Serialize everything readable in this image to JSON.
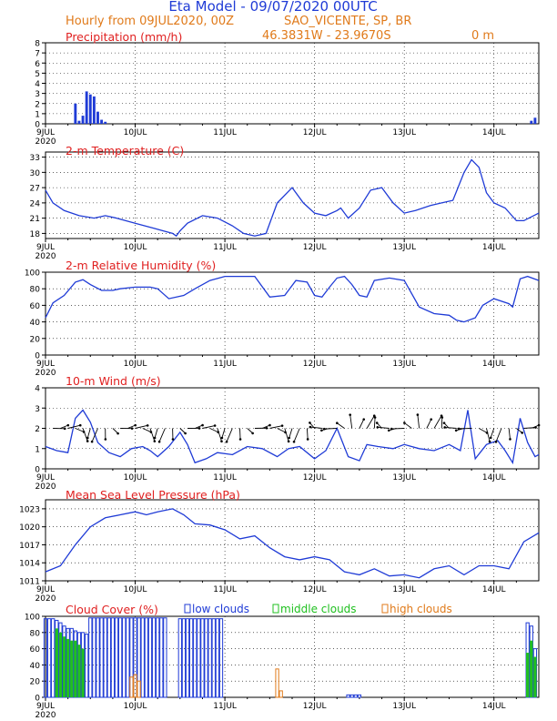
{
  "header": {
    "title": "Eta Model - 09/07/2020 00UTC",
    "subtitle": "Hourly from 09JUL2020, 00Z",
    "location": "SAO_VICENTE, SP, BR",
    "coords": "46.3831W - 23.9670S",
    "elevation": "0   m",
    "title_color": "#1f3bd6",
    "sub_color": "#e07a1a"
  },
  "x_axis": {
    "first_label": "9JUL",
    "first_year": "2020",
    "labels": [
      "9JUL",
      "10JUL",
      "11JUL",
      "12JUL",
      "13JUL",
      "14JUL"
    ],
    "positions": [
      0,
      24,
      48,
      72,
      96,
      120
    ],
    "range_hours": [
      0,
      132
    ]
  },
  "colors": {
    "series": "#1f3bd6",
    "title": "#e02020",
    "low": "#1f3bd6",
    "middle": "#20c020",
    "high": "#e07a1a"
  },
  "chart_data": [
    {
      "id": "precip",
      "type": "bar",
      "title": "Precipitation (mm/h)",
      "ylim": [
        0,
        8
      ],
      "yticks": [
        0,
        1,
        2,
        3,
        4,
        5,
        6,
        7,
        8
      ],
      "x": [
        8,
        9,
        10,
        11,
        12,
        13,
        14,
        15,
        16,
        130,
        131
      ],
      "values": [
        2.0,
        0.3,
        0.8,
        3.2,
        2.9,
        2.7,
        1.2,
        0.4,
        0.2,
        0.3,
        0.6
      ]
    },
    {
      "id": "temp",
      "type": "line",
      "title": "2-m Temperature (C)",
      "ylim": [
        17,
        34
      ],
      "yticks": [
        18,
        21,
        24,
        27,
        30,
        33
      ],
      "x": [
        0,
        2,
        5,
        9,
        13,
        16,
        19,
        24,
        29,
        34,
        35,
        36,
        38,
        42,
        46,
        50,
        53,
        56,
        59,
        62,
        66,
        69,
        72,
        75,
        78,
        79,
        81,
        84,
        87,
        90,
        93,
        96,
        99,
        103,
        106,
        109,
        112,
        114,
        116,
        118,
        120,
        123,
        126,
        128,
        132
      ],
      "values": [
        26.5,
        24,
        22.5,
        21.5,
        21,
        21.5,
        21,
        20,
        19,
        18,
        17.5,
        18.5,
        20,
        21.5,
        21,
        19.5,
        18,
        17.5,
        18,
        24,
        27,
        24,
        22,
        21.5,
        22.5,
        23,
        21,
        23,
        26.5,
        27,
        24,
        22,
        22.5,
        23.5,
        24,
        24.5,
        30,
        32.5,
        31,
        26,
        24,
        23,
        20.5,
        20.5,
        22
      ]
    },
    {
      "id": "rh",
      "type": "line",
      "title": "2-m Relative Humidity (%)",
      "ylim": [
        0,
        100
      ],
      "yticks": [
        0,
        20,
        40,
        60,
        80,
        100
      ],
      "x": [
        0,
        2,
        5,
        8,
        10,
        12,
        15,
        18,
        20,
        24,
        28,
        30,
        33,
        37,
        40,
        44,
        48,
        52,
        56,
        60,
        64,
        67,
        70,
        72,
        74,
        76,
        78,
        80,
        82,
        84,
        86,
        88,
        92,
        96,
        100,
        104,
        108,
        110,
        112,
        115,
        117,
        120,
        124,
        125,
        127,
        129,
        132
      ],
      "values": [
        45,
        63,
        72,
        88,
        91,
        85,
        78,
        78,
        80,
        82,
        82,
        80,
        68,
        72,
        80,
        90,
        95,
        95,
        95,
        70,
        72,
        90,
        88,
        72,
        70,
        82,
        93,
        95,
        85,
        72,
        70,
        90,
        93,
        90,
        58,
        50,
        48,
        42,
        40,
        45,
        60,
        68,
        62,
        58,
        92,
        95,
        90
      ]
    },
    {
      "id": "wind",
      "type": "line",
      "title": "10-m Wind (m/s)",
      "ylim": [
        0,
        4
      ],
      "yticks": [
        0,
        1,
        2,
        3,
        4
      ],
      "x": [
        0,
        3,
        6,
        8,
        10,
        12,
        14,
        17,
        20,
        23,
        26,
        28,
        30,
        33,
        36,
        38,
        40,
        43,
        46,
        50,
        54,
        58,
        62,
        65,
        68,
        72,
        75,
        78,
        81,
        84,
        86,
        89,
        93,
        96,
        100,
        104,
        108,
        111,
        113,
        115,
        118,
        121,
        123,
        125,
        127,
        129,
        131,
        132
      ],
      "values": [
        1.1,
        0.9,
        0.8,
        2.5,
        2.9,
        2.3,
        1.3,
        0.8,
        0.6,
        1.0,
        1.1,
        0.9,
        0.6,
        1.1,
        1.8,
        1.2,
        0.3,
        0.5,
        0.8,
        0.7,
        1.1,
        1.0,
        0.6,
        1.0,
        1.1,
        0.5,
        0.9,
        2.0,
        0.6,
        0.4,
        1.2,
        1.1,
        1.0,
        1.2,
        1.0,
        0.9,
        1.2,
        0.9,
        2.9,
        0.5,
        1.2,
        1.4,
        0.9,
        0.3,
        2.5,
        1.3,
        0.6,
        0.7
      ]
    },
    {
      "id": "mslp",
      "type": "line",
      "title": "Mean Sea Level Pressure (hPa)",
      "ylim": [
        1011,
        1024.5
      ],
      "yticks": [
        1011,
        1014,
        1017,
        1020,
        1023
      ],
      "x": [
        0,
        4,
        8,
        12,
        16,
        20,
        24,
        27,
        30,
        34,
        37,
        40,
        44,
        48,
        52,
        56,
        60,
        64,
        68,
        72,
        76,
        80,
        84,
        88,
        92,
        96,
        100,
        104,
        108,
        112,
        116,
        120,
        124,
        128,
        132
      ],
      "values": [
        1012.5,
        1013.5,
        1017,
        1020,
        1021.5,
        1022,
        1022.5,
        1022,
        1022.5,
        1023,
        1022,
        1020.5,
        1020.3,
        1019.5,
        1018,
        1018.5,
        1016.5,
        1015,
        1014.5,
        1015,
        1014.5,
        1012.5,
        1012,
        1013,
        1011.8,
        1012,
        1011.5,
        1013,
        1013.5,
        1012,
        1013.5,
        1013.5,
        1013,
        1017.5,
        1019
      ]
    },
    {
      "id": "cloud",
      "type": "bar",
      "title": "Cloud Cover (%)",
      "legend": [
        "low clouds",
        "middle clouds",
        "high clouds"
      ],
      "ylim": [
        0,
        100
      ],
      "yticks": [
        0,
        20,
        40,
        60,
        80,
        100
      ],
      "low": {
        "x": [
          0,
          1,
          2,
          3,
          4,
          5,
          6,
          7,
          8,
          9,
          10,
          11,
          12,
          13,
          14,
          15,
          16,
          17,
          18,
          19,
          20,
          21,
          22,
          23,
          24,
          25,
          26,
          27,
          28,
          29,
          30,
          31,
          32,
          36,
          37,
          38,
          39,
          40,
          41,
          42,
          43,
          44,
          45,
          46,
          47,
          81,
          82,
          83,
          84,
          129,
          130,
          131
        ],
        "values": [
          97,
          97,
          97,
          95,
          92,
          88,
          85,
          85,
          82,
          80,
          80,
          78,
          98,
          98,
          98,
          98,
          98,
          98,
          98,
          98,
          98,
          98,
          98,
          98,
          98,
          98,
          98,
          98,
          98,
          98,
          98,
          98,
          98,
          97,
          97,
          97,
          97,
          97,
          97,
          97,
          97,
          97,
          97,
          97,
          97,
          3,
          3,
          3,
          3,
          92,
          88,
          60
        ]
      },
      "middle": {
        "x": [
          3,
          4,
          5,
          6,
          7,
          8,
          9,
          10,
          129,
          130,
          131
        ],
        "values": [
          85,
          80,
          75,
          72,
          70,
          70,
          65,
          60,
          55,
          70,
          50
        ]
      },
      "high": {
        "x": [
          23,
          24,
          25,
          62,
          63
        ],
        "values": [
          25,
          28,
          20,
          35,
          8
        ]
      }
    }
  ]
}
